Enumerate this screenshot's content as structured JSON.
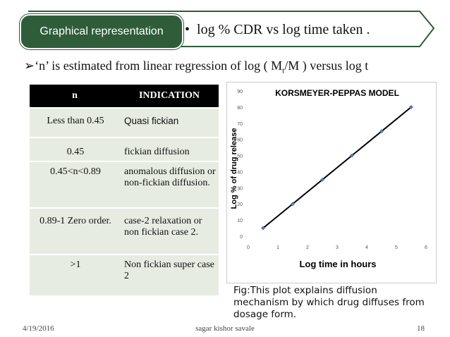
{
  "banner": {
    "badge": "Graphical representation",
    "bullet": "•",
    "title": "log % CDR vs log time taken ."
  },
  "subline": {
    "arrow": "➢",
    "before": "‘n’ is estimated from linear regression of  log ( M",
    "sub": "t",
    "after": "/M ) versus log t"
  },
  "table": {
    "headers": [
      "n",
      "INDICATION"
    ],
    "rows": [
      {
        "n": "Less than 0.45",
        "indication": "Quasi fickian"
      },
      {
        "n": "0.45",
        "indication": "fickian diffusion"
      },
      {
        "n": "0.45<n<0.89",
        "indication": "anomalous diffusion or non-fickian diffusion."
      },
      {
        "n": "0.89-1 Zero order.",
        "indication": "case-2 relaxation or  non fickian case 2."
      },
      {
        "n": ">1",
        "indication": "Non fickian super case 2"
      }
    ]
  },
  "chart_data": {
    "type": "scatter",
    "title": "KORSMEYER-PEPPAS MODEL",
    "xlabel": "Log time in hours",
    "ylabel": "Log % of drug release",
    "xlim": [
      0,
      6
    ],
    "ylim": [
      0,
      90
    ],
    "xticks": [
      "0",
      "1",
      "2",
      "3",
      "4",
      "5",
      "6"
    ],
    "yticks": [
      "0",
      "10",
      "20",
      "30",
      "40",
      "50",
      "60",
      "70",
      "80",
      "90"
    ],
    "grid": false,
    "series": [
      {
        "x": [
          0.5,
          1.5,
          2.5,
          3.5,
          4.5,
          5.5
        ],
        "y": [
          5,
          20,
          35,
          50,
          65,
          80
        ]
      }
    ],
    "trendline": {
      "x": [
        0.5,
        5.5
      ],
      "y": [
        5,
        80
      ]
    },
    "colors": {
      "marker": "#4a7ebb",
      "line": "#000000"
    }
  },
  "caption": "Fig:This plot explains diffusion mechanism by which drug diffuses from dosage form.",
  "footer": {
    "date": "4/19/2016",
    "author": "sagar kishor savale",
    "page": "18"
  }
}
